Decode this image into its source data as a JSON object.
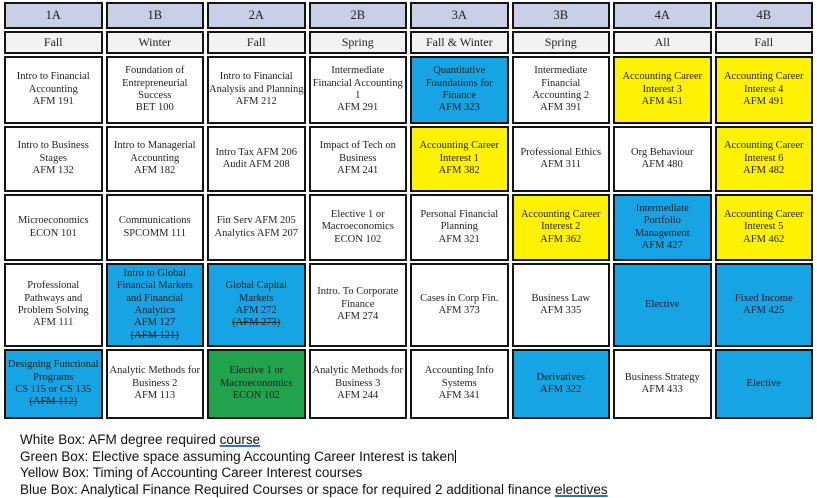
{
  "colors": {
    "header_bg": "#C9CFE6",
    "season_bg": "#F2F2F2",
    "white": "#FFFFFF",
    "blue": "#17A4E4",
    "yellow": "#FEF200",
    "green": "#21A24C",
    "border": "#141414",
    "underline": "#3A6EC0",
    "text": "#1F1F1F"
  },
  "header": {
    "cols": [
      {
        "term": "1A",
        "season": "Fall"
      },
      {
        "term": "1B",
        "season": "Winter"
      },
      {
        "term": "2A",
        "season": "Fall"
      },
      {
        "term": "2B",
        "season": "Spring"
      },
      {
        "term": "3A",
        "season": "Fall & Winter"
      },
      {
        "term": "3B",
        "season": "Spring"
      },
      {
        "term": "4A",
        "season": "All"
      },
      {
        "term": "4B",
        "season": "Fall"
      }
    ]
  },
  "grid": {
    "rows": [
      [
        {
          "bg": "white",
          "lines": [
            "Intro to Financial",
            "Accounting",
            "AFM 191"
          ]
        },
        {
          "bg": "white",
          "lines": [
            "Foundation of",
            "Entrepreneurial",
            "Success",
            "BET 100"
          ]
        },
        {
          "bg": "white",
          "lines": [
            "Intro to Financial",
            "Analysis and Planning",
            "AFM 212"
          ]
        },
        {
          "bg": "white",
          "lines": [
            "Intermediate",
            "Financial Accounting",
            "1",
            "AFM 291"
          ]
        },
        {
          "bg": "blue",
          "lines": [
            "Quantitative",
            "Foundations for",
            "Finance",
            "AFM 323"
          ]
        },
        {
          "bg": "white",
          "lines": [
            "Intermediate",
            "Financial",
            "Accounting 2",
            "AFM 391"
          ]
        },
        {
          "bg": "yellow",
          "lines": [
            "Accounting Career",
            "Interest 3",
            "AFM 451"
          ]
        },
        {
          "bg": "yellow",
          "lines": [
            "Accounting Career",
            "Interest 4",
            "AFM 491"
          ]
        }
      ],
      [
        {
          "bg": "white",
          "lines": [
            "Intro to Business",
            "Stages",
            "AFM 132"
          ]
        },
        {
          "bg": "white",
          "lines": [
            "Intro to Managerial",
            "Accounting",
            "AFM 182"
          ]
        },
        {
          "bg": "white",
          "lines": [
            "Intro Tax AFM 206",
            "Audit AFM 208"
          ]
        },
        {
          "bg": "white",
          "lines": [
            "Impact of Tech on",
            "Business",
            "AFM 241"
          ]
        },
        {
          "bg": "yellow",
          "lines": [
            "Accounting Career",
            "Interest 1",
            "AFM 382"
          ]
        },
        {
          "bg": "white",
          "lines": [
            "Professional Ethics",
            "AFM 311"
          ]
        },
        {
          "bg": "white",
          "lines": [
            "Org Behaviour",
            "AFM 480"
          ]
        },
        {
          "bg": "yellow",
          "lines": [
            "Accounting Career",
            "Interest 6",
            "AFM 482"
          ]
        }
      ],
      [
        {
          "bg": "white",
          "lines": [
            "Microeconomics",
            "ECON 101"
          ]
        },
        {
          "bg": "white",
          "lines": [
            "Communications",
            "SPCOMM 111"
          ]
        },
        {
          "bg": "white",
          "lines": [
            "Fin Serv AFM 205",
            "Analytics AFM 207"
          ]
        },
        {
          "bg": "white",
          "lines": [
            "Elective 1 or",
            "Macroeconomics",
            "ECON 102"
          ]
        },
        {
          "bg": "white",
          "lines": [
            "Personal Financial",
            "Planning",
            "AFM 321"
          ]
        },
        {
          "bg": "yellow",
          "lines": [
            "Accounting Career",
            "Interest 2",
            "AFM 362"
          ]
        },
        {
          "bg": "blue",
          "lines": [
            "Intermediate",
            "Portfolio",
            "Management",
            "AFM 427"
          ]
        },
        {
          "bg": "yellow",
          "lines": [
            "Accounting Career",
            "Interest 5",
            "AFM 462"
          ]
        }
      ],
      [
        {
          "bg": "white",
          "lines": [
            "Professional",
            "Pathways and",
            "Problem Solving",
            "AFM 111"
          ]
        },
        {
          "bg": "blue",
          "lines": [
            "Intro to Global",
            "Financial Markets",
            "and Financial",
            "Analytics",
            "AFM 127"
          ],
          "strike_line": "(AFM 121)"
        },
        {
          "bg": "blue",
          "lines": [
            "Global Capital",
            "Markets",
            "AFM 272"
          ],
          "strike_line": "(AFM 273)"
        },
        {
          "bg": "white",
          "lines": [
            "Intro. To Corporate",
            "Finance",
            "AFM 274"
          ]
        },
        {
          "bg": "white",
          "lines": [
            "Cases in Corp Fin.",
            "AFM 373"
          ]
        },
        {
          "bg": "white",
          "lines": [
            "Business Law",
            "AFM 335"
          ]
        },
        {
          "bg": "blue",
          "lines": [
            "Elective"
          ]
        },
        {
          "bg": "blue",
          "lines": [
            "Fixed Income",
            "AFM 425"
          ]
        }
      ],
      [
        {
          "bg": "blue",
          "lines": [
            "Designing Functional",
            "Programs",
            "CS 115 or CS 135"
          ],
          "strike_line": "(AFM 112)"
        },
        {
          "bg": "white",
          "lines": [
            "Analytic Methods for",
            "Business 2",
            "AFM 113"
          ]
        },
        {
          "bg": "green",
          "lines": [
            "Elective 1 or",
            "Macroeconomics",
            "ECON 102"
          ]
        },
        {
          "bg": "white",
          "lines": [
            "Analytic Methods for",
            "Business 3",
            "AFM 244"
          ]
        },
        {
          "bg": "white",
          "lines": [
            "Accounting Info",
            "Systems",
            "AFM 341"
          ]
        },
        {
          "bg": "blue",
          "lines": [
            "Derivatives",
            "AFM 322"
          ]
        },
        {
          "bg": "white",
          "lines": [
            "Business Strategy",
            "AFM 433"
          ]
        },
        {
          "bg": "blue",
          "lines": [
            "Elective"
          ]
        }
      ]
    ]
  },
  "legend": {
    "lines": [
      {
        "before": "White Box: AFM degree required ",
        "underlined": "course",
        "after": "",
        "caret": false
      },
      {
        "before": "Green Box: Elective space assuming Accounting Career Interest is taken",
        "underlined": "",
        "after": "",
        "caret": true
      },
      {
        "before": "Yellow Box: Timing of Accounting Career Interest courses",
        "underlined": "",
        "after": "",
        "caret": false
      },
      {
        "before": "Blue Box: Analytical Finance Required Courses or space for required 2 additional finance ",
        "underlined": "electives",
        "after": "",
        "caret": false
      }
    ]
  }
}
